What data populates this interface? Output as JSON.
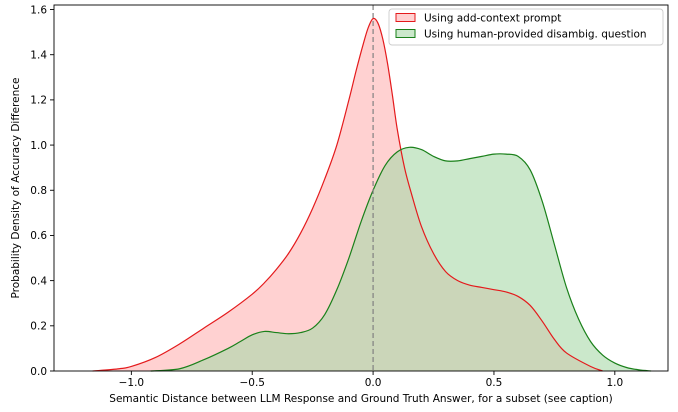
{
  "chart_data": {
    "type": "area",
    "xlabel": "Semantic Distance between LLM Response and Ground Truth Answer, for a subset (see caption)",
    "ylabel": "Probability Density of Accuracy Difference",
    "xlim": [
      -1.32,
      1.22
    ],
    "ylim": [
      0.0,
      1.62
    ],
    "xticks": [
      -1.0,
      -0.5,
      0.0,
      0.5,
      1.0
    ],
    "xtick_labels": [
      "−1.0",
      "−0.5",
      "0.0",
      "0.5",
      "1.0"
    ],
    "yticks": [
      0.0,
      0.2,
      0.4,
      0.6,
      0.8,
      1.0,
      1.2,
      1.4,
      1.6
    ],
    "ytick_labels": [
      "0.0",
      "0.2",
      "0.4",
      "0.6",
      "0.8",
      "1.0",
      "1.2",
      "1.4",
      "1.6"
    ],
    "reference_line": {
      "x": 0.0,
      "style": "dashed",
      "color": "#808080"
    },
    "legend": {
      "position": "top-right"
    },
    "series": [
      {
        "name": "Using add-context prompt",
        "color": "#e41a1c",
        "fill": "#ffb3b3",
        "x": [
          -1.16,
          -1.05,
          -1.0,
          -0.9,
          -0.8,
          -0.7,
          -0.6,
          -0.5,
          -0.45,
          -0.4,
          -0.35,
          -0.3,
          -0.25,
          -0.2,
          -0.15,
          -0.1,
          -0.07,
          -0.04,
          -0.02,
          0.0,
          0.02,
          0.04,
          0.06,
          0.08,
          0.1,
          0.13,
          0.16,
          0.2,
          0.25,
          0.3,
          0.35,
          0.4,
          0.45,
          0.5,
          0.55,
          0.6,
          0.65,
          0.7,
          0.75,
          0.8,
          0.9,
          0.95
        ],
        "y": [
          0.0,
          0.01,
          0.02,
          0.06,
          0.12,
          0.19,
          0.26,
          0.34,
          0.39,
          0.45,
          0.52,
          0.61,
          0.72,
          0.85,
          1.0,
          1.2,
          1.33,
          1.45,
          1.52,
          1.56,
          1.54,
          1.47,
          1.36,
          1.22,
          1.07,
          0.9,
          0.78,
          0.64,
          0.52,
          0.44,
          0.4,
          0.38,
          0.37,
          0.36,
          0.35,
          0.33,
          0.29,
          0.22,
          0.14,
          0.08,
          0.02,
          0.0
        ]
      },
      {
        "name": "Using human-provided disambig. question",
        "color": "#1a801a",
        "fill": "#a8d8a8",
        "x": [
          -0.92,
          -0.8,
          -0.7,
          -0.6,
          -0.55,
          -0.5,
          -0.45,
          -0.4,
          -0.35,
          -0.3,
          -0.25,
          -0.2,
          -0.15,
          -0.1,
          -0.05,
          0.0,
          0.05,
          0.1,
          0.15,
          0.2,
          0.25,
          0.3,
          0.35,
          0.4,
          0.45,
          0.5,
          0.55,
          0.6,
          0.65,
          0.7,
          0.75,
          0.8,
          0.85,
          0.9,
          0.95,
          1.0,
          1.05,
          1.1,
          1.15
        ],
        "y": [
          0.0,
          0.01,
          0.05,
          0.1,
          0.13,
          0.16,
          0.175,
          0.17,
          0.165,
          0.17,
          0.19,
          0.25,
          0.36,
          0.5,
          0.66,
          0.8,
          0.91,
          0.97,
          0.99,
          0.98,
          0.95,
          0.93,
          0.93,
          0.94,
          0.95,
          0.96,
          0.96,
          0.95,
          0.89,
          0.75,
          0.56,
          0.37,
          0.23,
          0.13,
          0.07,
          0.035,
          0.015,
          0.005,
          0.0
        ]
      }
    ]
  }
}
